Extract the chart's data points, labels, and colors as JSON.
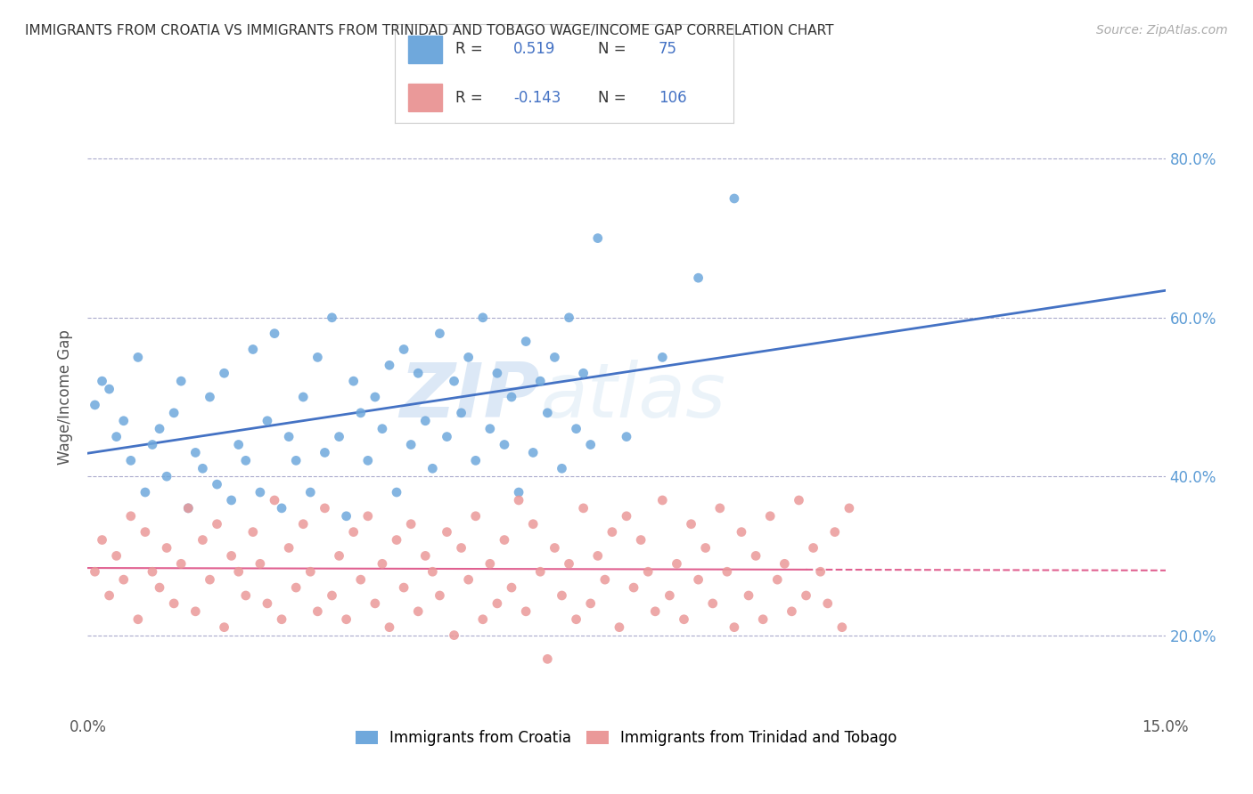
{
  "title": "IMMIGRANTS FROM CROATIA VS IMMIGRANTS FROM TRINIDAD AND TOBAGO WAGE/INCOME GAP CORRELATION CHART",
  "source": "Source: ZipAtlas.com",
  "ylabel": "Wage/Income Gap",
  "legend_label1": "Immigrants from Croatia",
  "legend_label2": "Immigrants from Trinidad and Tobago",
  "color_croatia": "#6fa8dc",
  "color_tt": "#ea9999",
  "color_line_croatia": "#4472c4",
  "color_line_tt": "#e06090",
  "watermark_zip": "ZIP",
  "watermark_atlas": "atlas",
  "xmin": 0.0,
  "xmax": 0.15,
  "ymin": 0.1,
  "ymax": 0.9,
  "croatia_points": [
    [
      0.001,
      0.49
    ],
    [
      0.002,
      0.52
    ],
    [
      0.003,
      0.51
    ],
    [
      0.004,
      0.45
    ],
    [
      0.005,
      0.47
    ],
    [
      0.006,
      0.42
    ],
    [
      0.007,
      0.55
    ],
    [
      0.008,
      0.38
    ],
    [
      0.009,
      0.44
    ],
    [
      0.01,
      0.46
    ],
    [
      0.011,
      0.4
    ],
    [
      0.012,
      0.48
    ],
    [
      0.013,
      0.52
    ],
    [
      0.014,
      0.36
    ],
    [
      0.015,
      0.43
    ],
    [
      0.016,
      0.41
    ],
    [
      0.017,
      0.5
    ],
    [
      0.018,
      0.39
    ],
    [
      0.019,
      0.53
    ],
    [
      0.02,
      0.37
    ],
    [
      0.021,
      0.44
    ],
    [
      0.022,
      0.42
    ],
    [
      0.023,
      0.56
    ],
    [
      0.024,
      0.38
    ],
    [
      0.025,
      0.47
    ],
    [
      0.026,
      0.58
    ],
    [
      0.027,
      0.36
    ],
    [
      0.028,
      0.45
    ],
    [
      0.029,
      0.42
    ],
    [
      0.03,
      0.5
    ],
    [
      0.031,
      0.38
    ],
    [
      0.032,
      0.55
    ],
    [
      0.033,
      0.43
    ],
    [
      0.034,
      0.6
    ],
    [
      0.035,
      0.45
    ],
    [
      0.036,
      0.35
    ],
    [
      0.037,
      0.52
    ],
    [
      0.038,
      0.48
    ],
    [
      0.039,
      0.42
    ],
    [
      0.04,
      0.5
    ],
    [
      0.041,
      0.46
    ],
    [
      0.042,
      0.54
    ],
    [
      0.043,
      0.38
    ],
    [
      0.044,
      0.56
    ],
    [
      0.045,
      0.44
    ],
    [
      0.046,
      0.53
    ],
    [
      0.047,
      0.47
    ],
    [
      0.048,
      0.41
    ],
    [
      0.049,
      0.58
    ],
    [
      0.05,
      0.45
    ],
    [
      0.051,
      0.52
    ],
    [
      0.052,
      0.48
    ],
    [
      0.053,
      0.55
    ],
    [
      0.054,
      0.42
    ],
    [
      0.055,
      0.6
    ],
    [
      0.056,
      0.46
    ],
    [
      0.057,
      0.53
    ],
    [
      0.058,
      0.44
    ],
    [
      0.059,
      0.5
    ],
    [
      0.06,
      0.38
    ],
    [
      0.061,
      0.57
    ],
    [
      0.062,
      0.43
    ],
    [
      0.063,
      0.52
    ],
    [
      0.064,
      0.48
    ],
    [
      0.065,
      0.55
    ],
    [
      0.066,
      0.41
    ],
    [
      0.067,
      0.6
    ],
    [
      0.068,
      0.46
    ],
    [
      0.069,
      0.53
    ],
    [
      0.07,
      0.44
    ],
    [
      0.071,
      0.7
    ],
    [
      0.075,
      0.45
    ],
    [
      0.08,
      0.55
    ],
    [
      0.085,
      0.65
    ],
    [
      0.09,
      0.75
    ]
  ],
  "tt_points": [
    [
      0.001,
      0.28
    ],
    [
      0.002,
      0.32
    ],
    [
      0.003,
      0.25
    ],
    [
      0.004,
      0.3
    ],
    [
      0.005,
      0.27
    ],
    [
      0.006,
      0.35
    ],
    [
      0.007,
      0.22
    ],
    [
      0.008,
      0.33
    ],
    [
      0.009,
      0.28
    ],
    [
      0.01,
      0.26
    ],
    [
      0.011,
      0.31
    ],
    [
      0.012,
      0.24
    ],
    [
      0.013,
      0.29
    ],
    [
      0.014,
      0.36
    ],
    [
      0.015,
      0.23
    ],
    [
      0.016,
      0.32
    ],
    [
      0.017,
      0.27
    ],
    [
      0.018,
      0.34
    ],
    [
      0.019,
      0.21
    ],
    [
      0.02,
      0.3
    ],
    [
      0.021,
      0.28
    ],
    [
      0.022,
      0.25
    ],
    [
      0.023,
      0.33
    ],
    [
      0.024,
      0.29
    ],
    [
      0.025,
      0.24
    ],
    [
      0.026,
      0.37
    ],
    [
      0.027,
      0.22
    ],
    [
      0.028,
      0.31
    ],
    [
      0.029,
      0.26
    ],
    [
      0.03,
      0.34
    ],
    [
      0.031,
      0.28
    ],
    [
      0.032,
      0.23
    ],
    [
      0.033,
      0.36
    ],
    [
      0.034,
      0.25
    ],
    [
      0.035,
      0.3
    ],
    [
      0.036,
      0.22
    ],
    [
      0.037,
      0.33
    ],
    [
      0.038,
      0.27
    ],
    [
      0.039,
      0.35
    ],
    [
      0.04,
      0.24
    ],
    [
      0.041,
      0.29
    ],
    [
      0.042,
      0.21
    ],
    [
      0.043,
      0.32
    ],
    [
      0.044,
      0.26
    ],
    [
      0.045,
      0.34
    ],
    [
      0.046,
      0.23
    ],
    [
      0.047,
      0.3
    ],
    [
      0.048,
      0.28
    ],
    [
      0.049,
      0.25
    ],
    [
      0.05,
      0.33
    ],
    [
      0.051,
      0.2
    ],
    [
      0.052,
      0.31
    ],
    [
      0.053,
      0.27
    ],
    [
      0.054,
      0.35
    ],
    [
      0.055,
      0.22
    ],
    [
      0.056,
      0.29
    ],
    [
      0.057,
      0.24
    ],
    [
      0.058,
      0.32
    ],
    [
      0.059,
      0.26
    ],
    [
      0.06,
      0.37
    ],
    [
      0.061,
      0.23
    ],
    [
      0.062,
      0.34
    ],
    [
      0.063,
      0.28
    ],
    [
      0.064,
      0.17
    ],
    [
      0.065,
      0.31
    ],
    [
      0.066,
      0.25
    ],
    [
      0.067,
      0.29
    ],
    [
      0.068,
      0.22
    ],
    [
      0.069,
      0.36
    ],
    [
      0.07,
      0.24
    ],
    [
      0.071,
      0.3
    ],
    [
      0.072,
      0.27
    ],
    [
      0.073,
      0.33
    ],
    [
      0.074,
      0.21
    ],
    [
      0.075,
      0.35
    ],
    [
      0.076,
      0.26
    ],
    [
      0.077,
      0.32
    ],
    [
      0.078,
      0.28
    ],
    [
      0.079,
      0.23
    ],
    [
      0.08,
      0.37
    ],
    [
      0.081,
      0.25
    ],
    [
      0.082,
      0.29
    ],
    [
      0.083,
      0.22
    ],
    [
      0.084,
      0.34
    ],
    [
      0.085,
      0.27
    ],
    [
      0.086,
      0.31
    ],
    [
      0.087,
      0.24
    ],
    [
      0.088,
      0.36
    ],
    [
      0.089,
      0.28
    ],
    [
      0.09,
      0.21
    ],
    [
      0.091,
      0.33
    ],
    [
      0.092,
      0.25
    ],
    [
      0.093,
      0.3
    ],
    [
      0.094,
      0.22
    ],
    [
      0.095,
      0.35
    ],
    [
      0.096,
      0.27
    ],
    [
      0.097,
      0.29
    ],
    [
      0.098,
      0.23
    ],
    [
      0.099,
      0.37
    ],
    [
      0.1,
      0.25
    ],
    [
      0.101,
      0.31
    ],
    [
      0.102,
      0.28
    ],
    [
      0.103,
      0.24
    ],
    [
      0.104,
      0.33
    ],
    [
      0.105,
      0.21
    ],
    [
      0.106,
      0.36
    ]
  ]
}
